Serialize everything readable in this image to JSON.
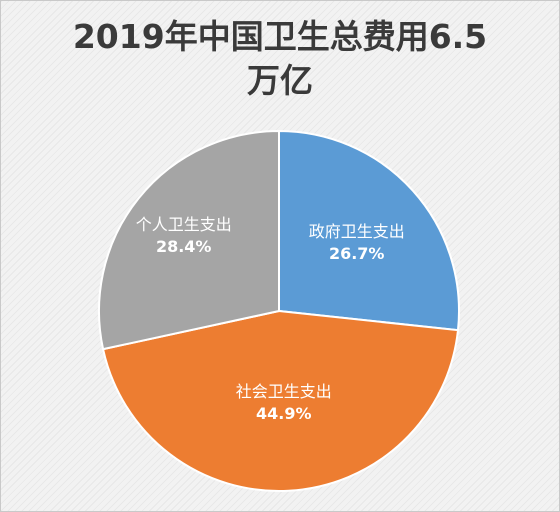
{
  "chart_data": {
    "type": "pie",
    "title_lines": [
      "2019年中国卫生总费用6.5",
      "万亿"
    ],
    "slices": [
      {
        "label": "政府卫生支出",
        "value": 26.7,
        "pct_label": "26.7%",
        "color": "#5b9bd5"
      },
      {
        "label": "社会卫生支出",
        "value": 44.9,
        "pct_label": "44.9%",
        "color": "#ed7d31"
      },
      {
        "label": "个人卫生支出",
        "value": 28.4,
        "pct_label": "28.4%",
        "color": "#a5a5a5"
      }
    ],
    "start_angle_deg": 0,
    "direction": "clockwise",
    "label_color": "#ffffff",
    "data_labels_inside": true,
    "legend": "none"
  }
}
